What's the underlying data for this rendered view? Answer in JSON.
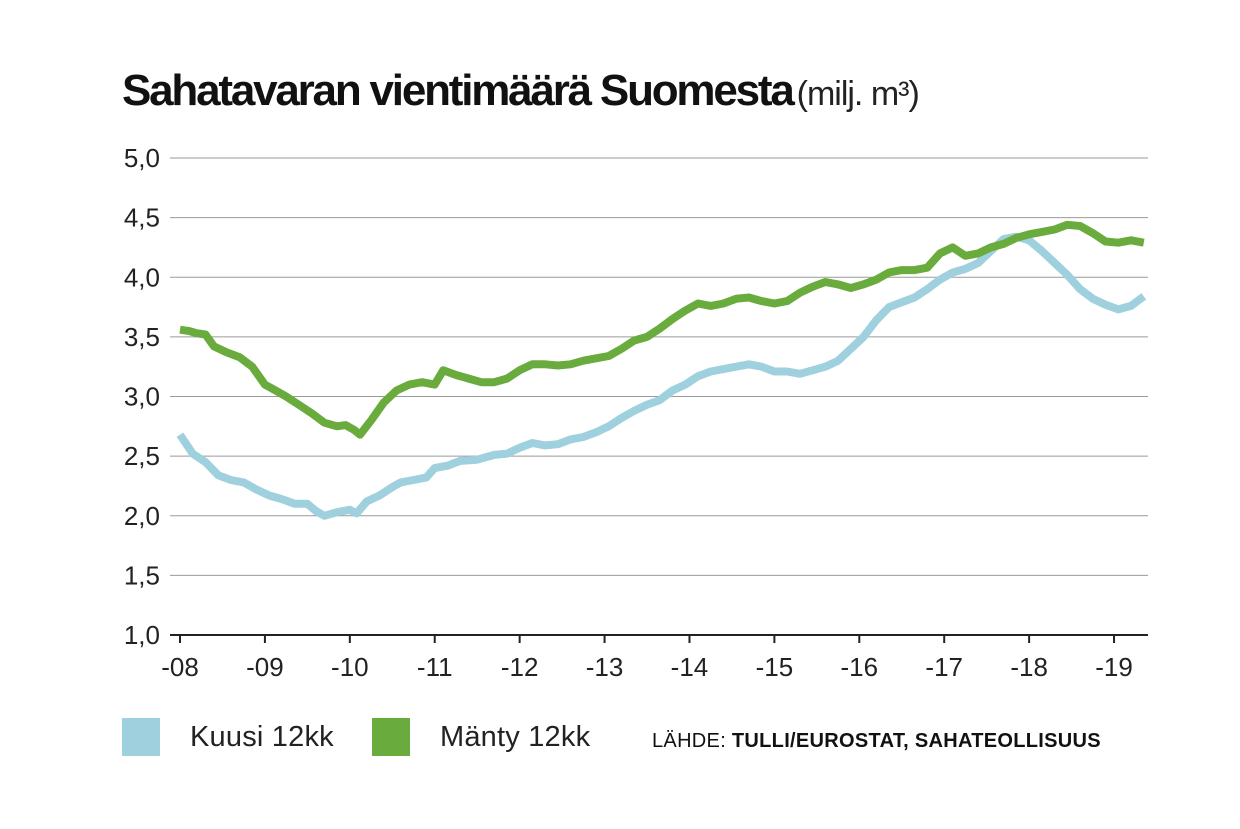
{
  "chart_data": {
    "type": "line",
    "title": "Sahatavaran vientimäärä Suomesta",
    "unit": "(milj. m³)",
    "xlabel": "",
    "ylabel": "",
    "ylim": [
      1.0,
      5.0
    ],
    "xlim": [
      2008.0,
      2019.4
    ],
    "y_ticks": [
      1.0,
      1.5,
      2.0,
      2.5,
      3.0,
      3.5,
      4.0,
      4.5,
      5.0
    ],
    "y_tick_labels": [
      "1,0",
      "1,5",
      "2,0",
      "2,5",
      "3,0",
      "3,5",
      "4,0",
      "4,5",
      "5,0"
    ],
    "x_ticks": [
      2008,
      2009,
      2010,
      2011,
      2012,
      2013,
      2014,
      2015,
      2016,
      2017,
      2018,
      2019
    ],
    "x_tick_labels": [
      "-08",
      "-09",
      "-10",
      "-11",
      "-12",
      "-13",
      "-14",
      "-15",
      "-16",
      "-17",
      "-18",
      "-19"
    ],
    "grid": true,
    "series": [
      {
        "name": "Kuusi 12kk",
        "color": "#9fd0de",
        "points": [
          [
            2008.0,
            2.68
          ],
          [
            2008.15,
            2.52
          ],
          [
            2008.3,
            2.45
          ],
          [
            2008.45,
            2.34
          ],
          [
            2008.6,
            2.3
          ],
          [
            2008.75,
            2.28
          ],
          [
            2008.9,
            2.22
          ],
          [
            2009.05,
            2.17
          ],
          [
            2009.2,
            2.14
          ],
          [
            2009.35,
            2.1
          ],
          [
            2009.5,
            2.1
          ],
          [
            2009.6,
            2.04
          ],
          [
            2009.7,
            2.0
          ],
          [
            2009.85,
            2.03
          ],
          [
            2010.0,
            2.05
          ],
          [
            2010.08,
            2.02
          ],
          [
            2010.2,
            2.12
          ],
          [
            2010.35,
            2.17
          ],
          [
            2010.5,
            2.24
          ],
          [
            2010.6,
            2.28
          ],
          [
            2010.75,
            2.3
          ],
          [
            2010.9,
            2.32
          ],
          [
            2011.0,
            2.4
          ],
          [
            2011.15,
            2.42
          ],
          [
            2011.3,
            2.46
          ],
          [
            2011.5,
            2.47
          ],
          [
            2011.7,
            2.51
          ],
          [
            2011.85,
            2.52
          ],
          [
            2012.0,
            2.57
          ],
          [
            2012.15,
            2.61
          ],
          [
            2012.3,
            2.59
          ],
          [
            2012.45,
            2.6
          ],
          [
            2012.6,
            2.64
          ],
          [
            2012.75,
            2.66
          ],
          [
            2012.9,
            2.7
          ],
          [
            2013.05,
            2.75
          ],
          [
            2013.2,
            2.82
          ],
          [
            2013.35,
            2.88
          ],
          [
            2013.5,
            2.93
          ],
          [
            2013.65,
            2.97
          ],
          [
            2013.8,
            3.05
          ],
          [
            2013.95,
            3.1
          ],
          [
            2014.1,
            3.17
          ],
          [
            2014.25,
            3.21
          ],
          [
            2014.4,
            3.23
          ],
          [
            2014.55,
            3.25
          ],
          [
            2014.7,
            3.27
          ],
          [
            2014.85,
            3.25
          ],
          [
            2015.0,
            3.21
          ],
          [
            2015.15,
            3.21
          ],
          [
            2015.3,
            3.19
          ],
          [
            2015.45,
            3.22
          ],
          [
            2015.6,
            3.25
          ],
          [
            2015.75,
            3.3
          ],
          [
            2015.9,
            3.4
          ],
          [
            2016.05,
            3.5
          ],
          [
            2016.2,
            3.64
          ],
          [
            2016.35,
            3.75
          ],
          [
            2016.5,
            3.79
          ],
          [
            2016.65,
            3.83
          ],
          [
            2016.8,
            3.9
          ],
          [
            2016.95,
            3.98
          ],
          [
            2017.1,
            4.04
          ],
          [
            2017.25,
            4.07
          ],
          [
            2017.4,
            4.12
          ],
          [
            2017.55,
            4.22
          ],
          [
            2017.7,
            4.32
          ],
          [
            2017.85,
            4.34
          ],
          [
            2018.0,
            4.31
          ],
          [
            2018.15,
            4.22
          ],
          [
            2018.3,
            4.12
          ],
          [
            2018.45,
            4.02
          ],
          [
            2018.6,
            3.9
          ],
          [
            2018.75,
            3.82
          ],
          [
            2018.9,
            3.77
          ],
          [
            2019.05,
            3.73
          ],
          [
            2019.2,
            3.76
          ],
          [
            2019.35,
            3.84
          ]
        ]
      },
      {
        "name": "Mänty 12kk",
        "color": "#6aab3e",
        "points": [
          [
            2008.0,
            3.56
          ],
          [
            2008.1,
            3.55
          ],
          [
            2008.2,
            3.53
          ],
          [
            2008.3,
            3.52
          ],
          [
            2008.4,
            3.42
          ],
          [
            2008.55,
            3.37
          ],
          [
            2008.7,
            3.33
          ],
          [
            2008.85,
            3.25
          ],
          [
            2009.0,
            3.1
          ],
          [
            2009.1,
            3.06
          ],
          [
            2009.25,
            3.0
          ],
          [
            2009.4,
            2.93
          ],
          [
            2009.55,
            2.86
          ],
          [
            2009.7,
            2.78
          ],
          [
            2009.85,
            2.75
          ],
          [
            2009.95,
            2.76
          ],
          [
            2010.05,
            2.72
          ],
          [
            2010.12,
            2.68
          ],
          [
            2010.25,
            2.8
          ],
          [
            2010.4,
            2.95
          ],
          [
            2010.55,
            3.05
          ],
          [
            2010.7,
            3.1
          ],
          [
            2010.85,
            3.12
          ],
          [
            2011.0,
            3.1
          ],
          [
            2011.1,
            3.22
          ],
          [
            2011.25,
            3.18
          ],
          [
            2011.4,
            3.15
          ],
          [
            2011.55,
            3.12
          ],
          [
            2011.7,
            3.12
          ],
          [
            2011.85,
            3.15
          ],
          [
            2012.0,
            3.22
          ],
          [
            2012.15,
            3.27
          ],
          [
            2012.3,
            3.27
          ],
          [
            2012.45,
            3.26
          ],
          [
            2012.6,
            3.27
          ],
          [
            2012.75,
            3.3
          ],
          [
            2012.9,
            3.32
          ],
          [
            2013.05,
            3.34
          ],
          [
            2013.2,
            3.4
          ],
          [
            2013.35,
            3.47
          ],
          [
            2013.5,
            3.5
          ],
          [
            2013.65,
            3.57
          ],
          [
            2013.8,
            3.65
          ],
          [
            2013.95,
            3.72
          ],
          [
            2014.1,
            3.78
          ],
          [
            2014.25,
            3.76
          ],
          [
            2014.4,
            3.78
          ],
          [
            2014.55,
            3.82
          ],
          [
            2014.7,
            3.83
          ],
          [
            2014.85,
            3.8
          ],
          [
            2015.0,
            3.78
          ],
          [
            2015.15,
            3.8
          ],
          [
            2015.3,
            3.87
          ],
          [
            2015.45,
            3.92
          ],
          [
            2015.6,
            3.96
          ],
          [
            2015.75,
            3.94
          ],
          [
            2015.9,
            3.91
          ],
          [
            2016.05,
            3.94
          ],
          [
            2016.2,
            3.98
          ],
          [
            2016.35,
            4.04
          ],
          [
            2016.5,
            4.06
          ],
          [
            2016.65,
            4.06
          ],
          [
            2016.8,
            4.08
          ],
          [
            2016.95,
            4.2
          ],
          [
            2017.1,
            4.25
          ],
          [
            2017.25,
            4.18
          ],
          [
            2017.4,
            4.2
          ],
          [
            2017.55,
            4.25
          ],
          [
            2017.7,
            4.28
          ],
          [
            2017.85,
            4.33
          ],
          [
            2018.0,
            4.36
          ],
          [
            2018.15,
            4.38
          ],
          [
            2018.3,
            4.4
          ],
          [
            2018.45,
            4.44
          ],
          [
            2018.6,
            4.43
          ],
          [
            2018.75,
            4.37
          ],
          [
            2018.9,
            4.3
          ],
          [
            2019.05,
            4.29
          ],
          [
            2019.2,
            4.31
          ],
          [
            2019.35,
            4.29
          ]
        ]
      }
    ],
    "legend_position": "bottom-left",
    "source_prefix": "LÄHDE:",
    "source_text": "TULLI/EUROSTAT, SAHATEOLLISUUS"
  }
}
